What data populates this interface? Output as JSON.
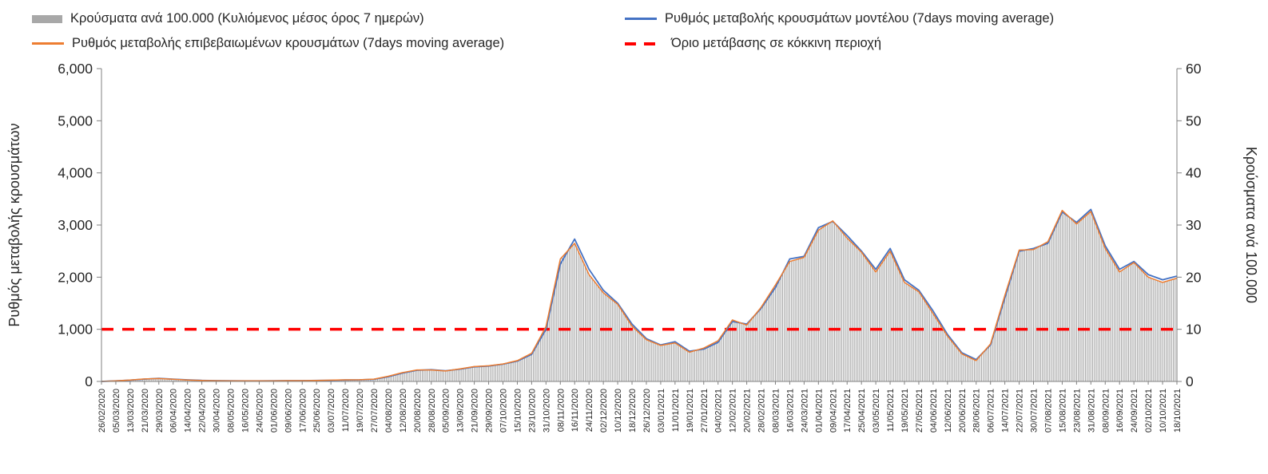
{
  "legend": {
    "bars": "Κρούσματα ανά 100.000 (Κυλιόμενος μέσος όρος 7 ημερών)",
    "model": "Ρυθμός μεταβολής κρουσμάτων μοντέλου (7days moving average)",
    "confirmed": "Ρυθμός μεταβολής επιβεβαιωμένων κρουσμάτων (7days moving average)",
    "threshold": "Όριο μετάβασης σε κόκκινη περιοχή"
  },
  "colors": {
    "bars": "#A8A8A8",
    "model": "#4472C4",
    "confirmed": "#ED7D31",
    "threshold": "#FF0000",
    "axis": "#808080",
    "text": "#262626"
  },
  "chart_data": {
    "type": "line",
    "title": "",
    "legend_position": "top",
    "grid": false,
    "categories": [
      "26/02/2020",
      "05/03/2020",
      "13/03/2020",
      "21/03/2020",
      "29/03/2020",
      "06/04/2020",
      "14/04/2020",
      "22/04/2020",
      "30/04/2020",
      "08/05/2020",
      "16/05/2020",
      "24/05/2020",
      "01/06/2020",
      "09/06/2020",
      "17/06/2020",
      "25/06/2020",
      "03/07/2020",
      "11/07/2020",
      "19/07/2020",
      "27/07/2020",
      "04/08/2020",
      "12/08/2020",
      "20/08/2020",
      "28/08/2020",
      "05/09/2020",
      "13/09/2020",
      "21/09/2020",
      "29/09/2020",
      "07/10/2020",
      "15/10/2020",
      "23/10/2020",
      "31/10/2020",
      "08/11/2020",
      "16/11/2020",
      "24/11/2020",
      "02/12/2020",
      "10/12/2020",
      "18/12/2020",
      "26/12/2020",
      "03/01/2021",
      "11/01/2021",
      "19/01/2021",
      "27/01/2021",
      "04/02/2021",
      "12/02/2021",
      "20/02/2021",
      "28/02/2021",
      "08/03/2021",
      "16/03/2021",
      "24/03/2021",
      "01/04/2021",
      "09/04/2021",
      "17/04/2021",
      "25/04/2021",
      "03/05/2021",
      "11/05/2021",
      "19/05/2021",
      "27/05/2021",
      "04/06/2021",
      "12/06/2021",
      "20/06/2021",
      "28/06/2021",
      "06/07/2021",
      "14/07/2021",
      "22/07/2021",
      "30/07/2021",
      "07/08/2021",
      "15/08/2021",
      "23/08/2021",
      "31/08/2021",
      "08/09/2021",
      "16/09/2021",
      "24/09/2021",
      "02/10/2021",
      "10/10/2021",
      "18/10/2021"
    ],
    "series": [
      {
        "name": "Ρυθμός μεταβολής κρουσμάτων μοντέλου (7days moving average)",
        "type": "line",
        "axis": "left",
        "color_key": "model",
        "values": [
          0,
          10,
          25,
          45,
          60,
          45,
          30,
          20,
          15,
          12,
          10,
          10,
          12,
          15,
          15,
          18,
          22,
          28,
          30,
          40,
          90,
          160,
          215,
          225,
          205,
          235,
          280,
          295,
          330,
          390,
          520,
          1000,
          2250,
          2730,
          2150,
          1750,
          1500,
          1100,
          820,
          700,
          760,
          580,
          620,
          750,
          1150,
          1100,
          1400,
          1800,
          2350,
          2400,
          2950,
          3070,
          2800,
          2500,
          2150,
          2550,
          1950,
          1750,
          1350,
          900,
          550,
          420,
          700,
          1600,
          2500,
          2550,
          2650,
          3250,
          3050,
          3300,
          2600,
          2150,
          2300,
          2050,
          1950,
          2020
        ]
      },
      {
        "name": "Ρυθμός μεταβολής επιβεβαιωμένων κρουσμάτων (7days moving average)",
        "type": "line",
        "axis": "left",
        "color_key": "confirmed",
        "values": [
          0,
          12,
          28,
          48,
          55,
          42,
          28,
          18,
          14,
          11,
          10,
          10,
          13,
          16,
          16,
          19,
          24,
          30,
          32,
          45,
          100,
          170,
          220,
          220,
          200,
          240,
          285,
          300,
          335,
          400,
          540,
          1050,
          2350,
          2650,
          2050,
          1700,
          1480,
          1060,
          800,
          690,
          740,
          560,
          640,
          780,
          1180,
          1080,
          1420,
          1850,
          2300,
          2380,
          2900,
          3080,
          2750,
          2480,
          2100,
          2500,
          1900,
          1720,
          1300,
          870,
          530,
          400,
          720,
          1650,
          2520,
          2530,
          2680,
          3280,
          3020,
          3260,
          2550,
          2100,
          2280,
          2000,
          1900,
          1980
        ]
      },
      {
        "name": "Κρούσματα ανά 100.000 (Κυλιόμενος μέσος όρος 7 ημερών)",
        "type": "bar",
        "axis": "right",
        "color_key": "bars",
        "values": [
          0,
          0.1,
          0.3,
          0.5,
          0.6,
          0.4,
          0.3,
          0.2,
          0.1,
          0.1,
          0.1,
          0.1,
          0.1,
          0.2,
          0.2,
          0.2,
          0.2,
          0.3,
          0.3,
          0.5,
          1,
          1.7,
          2.2,
          2.2,
          2,
          2.4,
          2.9,
          3,
          3.4,
          4,
          5.4,
          10.5,
          23.5,
          26.5,
          20.5,
          17,
          14.8,
          10.6,
          8,
          6.9,
          7.4,
          5.6,
          6.4,
          7.8,
          11.8,
          10.8,
          14.2,
          18.5,
          23,
          23.8,
          29,
          30.8,
          27.5,
          24.8,
          21,
          25,
          19,
          17.2,
          13,
          8.7,
          5.3,
          4,
          7.2,
          16.5,
          25.2,
          25.3,
          26.8,
          32.8,
          30.2,
          32.6,
          25.5,
          21,
          22.8,
          20,
          19,
          19.8
        ]
      }
    ],
    "threshold": {
      "label": "Όριο μετάβασης σε κόκκινη περιοχή",
      "value_left_axis": 1000,
      "value_right_axis": 10
    },
    "left_axis": {
      "title": "Ρυθμός μεταβολής κρουσμάτων",
      "min": 0,
      "max": 6000,
      "step": 1000,
      "tick_labels": [
        "0",
        "1,000",
        "2,000",
        "3,000",
        "4,000",
        "5,000",
        "6,000"
      ]
    },
    "right_axis": {
      "title": "Κρούσματα ανά 100.000",
      "min": 0,
      "max": 60,
      "step": 10,
      "tick_labels": [
        "0",
        "10",
        "20",
        "30",
        "40",
        "50",
        "60"
      ]
    }
  }
}
